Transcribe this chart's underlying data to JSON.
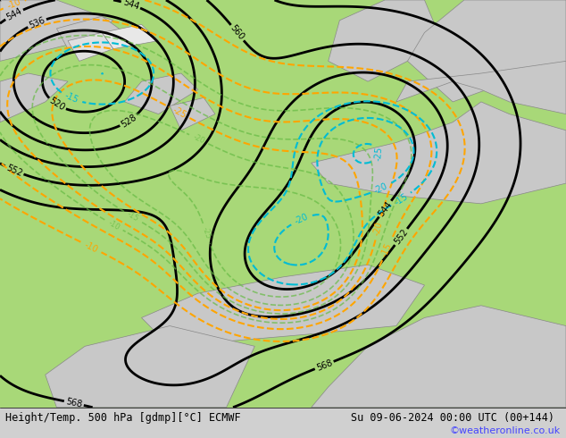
{
  "title_left": "Height/Temp. 500 hPa [gdmp][°C] ECMWF",
  "title_right": "Su 09-06-2024 00:00 UTC (00+144)",
  "copyright": "©weatheronline.co.uk",
  "bg_color": "#d0d0d0",
  "land_color": "#c8c8c8",
  "green_color": "#a8d878",
  "z500_color": "#000000",
  "temp_neg_color": "#ffa500",
  "cyan_color": "#00bcd4",
  "fig_width": 6.34,
  "fig_height": 4.9,
  "dpi": 100
}
